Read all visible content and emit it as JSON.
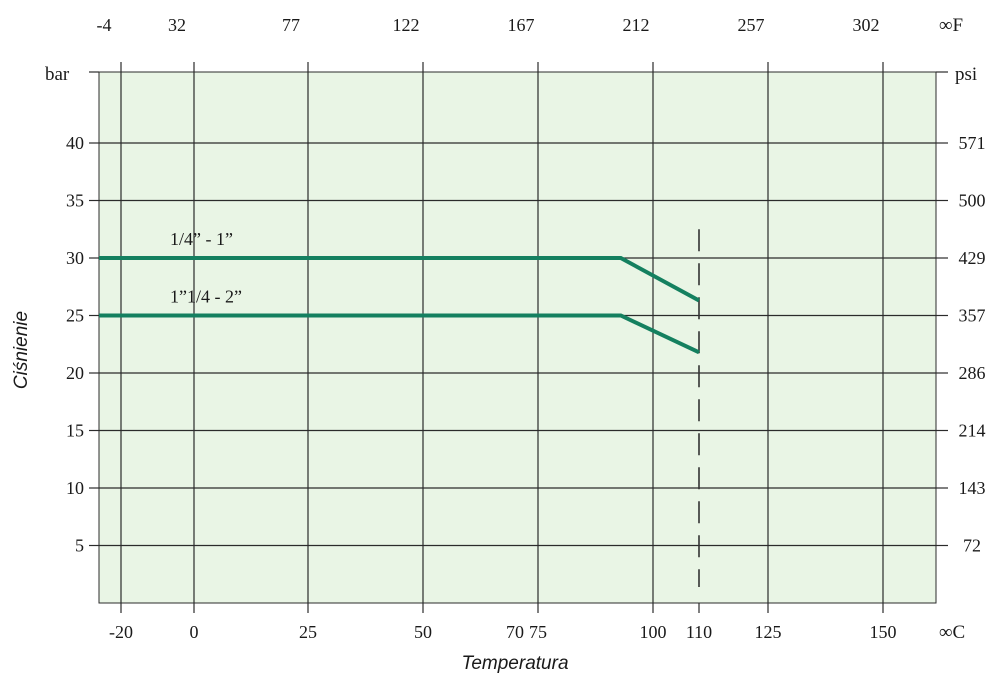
{
  "chart_data": {
    "type": "line",
    "x_axis": {
      "label": "Temperatura",
      "unit": "∞C",
      "ticks": [
        -20,
        0,
        25,
        50,
        70,
        75,
        100,
        110,
        125,
        150
      ],
      "tick_labels": [
        "-20",
        "0",
        "25",
        "50",
        "70",
        "75",
        "100",
        "110",
        "125",
        "150"
      ],
      "range": [
        -25,
        160
      ]
    },
    "x_axis_top": {
      "unit": "∞F",
      "tick_labels": [
        "-4",
        "32",
        "77",
        "122",
        "167",
        "212",
        "257",
        "302"
      ],
      "ticks_celsius": [
        -20,
        0,
        25,
        50,
        75,
        100,
        125,
        150
      ]
    },
    "y_axis": {
      "label": "Ciśnienie",
      "unit": "bar",
      "ticks": [
        5,
        10,
        15,
        20,
        25,
        30,
        35,
        40
      ],
      "tick_labels": [
        "5",
        "10",
        "15",
        "20",
        "25",
        "30",
        "35",
        "40"
      ],
      "range": [
        0,
        46
      ]
    },
    "y_axis_right": {
      "unit": "psi",
      "tick_labels": [
        "72",
        "143",
        "214",
        "286",
        "357",
        "429",
        "500",
        "571"
      ],
      "ticks_bar": [
        5,
        10,
        15,
        20,
        25,
        30,
        35,
        40
      ]
    },
    "series": [
      {
        "name": "1/4” - 1”",
        "x": [
          -25,
          93,
          110
        ],
        "y": [
          30,
          30,
          26.3
        ]
      },
      {
        "name": "1”1/4 - 2”",
        "x": [
          -25,
          93,
          110
        ],
        "y": [
          25,
          25,
          21.8
        ]
      }
    ],
    "reference_lines": [
      {
        "orientation": "vertical",
        "x": 110,
        "style": "dashed",
        "y_range": [
          0,
          32.5
        ]
      }
    ],
    "grid": true,
    "colors": {
      "plot_background": "#e9f5e5",
      "line": "#14805f",
      "grid": "#2b2b2b"
    }
  }
}
